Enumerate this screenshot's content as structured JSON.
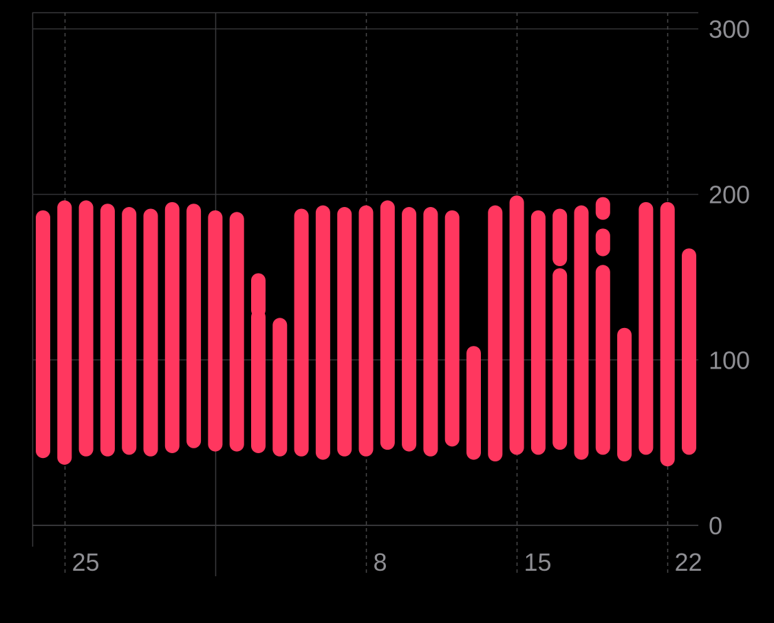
{
  "chart_data": {
    "type": "bar",
    "style": "range-bar",
    "background": "#000000",
    "bar_color": "#ff375f",
    "grid": true,
    "yaxis_position": "right",
    "ylim": [
      0,
      300
    ],
    "yticks": [
      {
        "value": 0,
        "label": "0"
      },
      {
        "value": 100,
        "label": "100"
      },
      {
        "value": 200,
        "label": "200"
      },
      {
        "value": 300,
        "label": "300"
      }
    ],
    "xlim": [
      24,
      55
    ],
    "xticks": [
      {
        "value": 25,
        "label": "25",
        "line": "dashed"
      },
      {
        "value": 32,
        "label": "",
        "line": "solid"
      },
      {
        "value": 39,
        "label": "8",
        "line": "dashed"
      },
      {
        "value": 46,
        "label": "15",
        "line": "dashed"
      },
      {
        "value": 53,
        "label": "22",
        "line": "dashed"
      }
    ],
    "series": [
      {
        "values": [
          {
            "day": 24,
            "ranges": [
              [
                45,
                186
              ]
            ]
          },
          {
            "day": 25,
            "ranges": [
              [
                41,
                192
              ]
            ]
          },
          {
            "day": 26,
            "ranges": [
              [
                46,
                192
              ]
            ]
          },
          {
            "day": 27,
            "ranges": [
              [
                46,
                190
              ]
            ]
          },
          {
            "day": 28,
            "ranges": [
              [
                47,
                188
              ]
            ]
          },
          {
            "day": 29,
            "ranges": [
              [
                46,
                187
              ]
            ]
          },
          {
            "day": 30,
            "ranges": [
              [
                48,
                191
              ]
            ]
          },
          {
            "day": 31,
            "ranges": [
              [
                51,
                190
              ]
            ]
          },
          {
            "day": 32,
            "ranges": [
              [
                49,
                186
              ]
            ]
          },
          {
            "day": 33,
            "ranges": [
              [
                49,
                185
              ]
            ]
          },
          {
            "day": 34,
            "ranges": [
              [
                48,
                126
              ],
              [
                130,
                148
              ]
            ]
          },
          {
            "day": 35,
            "ranges": [
              [
                46,
                121
              ]
            ]
          },
          {
            "day": 36,
            "ranges": [
              [
                46,
                187
              ]
            ]
          },
          {
            "day": 37,
            "ranges": [
              [
                44,
                189
              ]
            ]
          },
          {
            "day": 38,
            "ranges": [
              [
                46,
                188
              ]
            ]
          },
          {
            "day": 39,
            "ranges": [
              [
                46,
                189
              ]
            ]
          },
          {
            "day": 40,
            "ranges": [
              [
                50,
                192
              ]
            ]
          },
          {
            "day": 41,
            "ranges": [
              [
                49,
                188
              ]
            ]
          },
          {
            "day": 42,
            "ranges": [
              [
                46,
                188
              ]
            ]
          },
          {
            "day": 43,
            "ranges": [
              [
                52,
                186
              ]
            ]
          },
          {
            "day": 44,
            "ranges": [
              [
                44,
                104
              ]
            ]
          },
          {
            "day": 45,
            "ranges": [
              [
                43,
                189
              ]
            ]
          },
          {
            "day": 46,
            "ranges": [
              [
                47,
                195
              ]
            ]
          },
          {
            "day": 47,
            "ranges": [
              [
                47,
                186
              ]
            ]
          },
          {
            "day": 48,
            "ranges": [
              [
                50,
                151
              ],
              [
                161,
                187
              ]
            ]
          },
          {
            "day": 49,
            "ranges": [
              [
                44,
                189
              ]
            ]
          },
          {
            "day": 50,
            "ranges": [
              [
                47,
                153
              ],
              [
                167,
                175
              ],
              [
                189,
                194
              ]
            ]
          },
          {
            "day": 51,
            "ranges": [
              [
                43,
                115
              ]
            ]
          },
          {
            "day": 52,
            "ranges": [
              [
                47,
                191
              ]
            ]
          },
          {
            "day": 53,
            "ranges": [
              [
                40,
                191
              ]
            ]
          },
          {
            "day": 54,
            "ranges": [
              [
                47,
                163
              ]
            ]
          }
        ]
      }
    ]
  }
}
